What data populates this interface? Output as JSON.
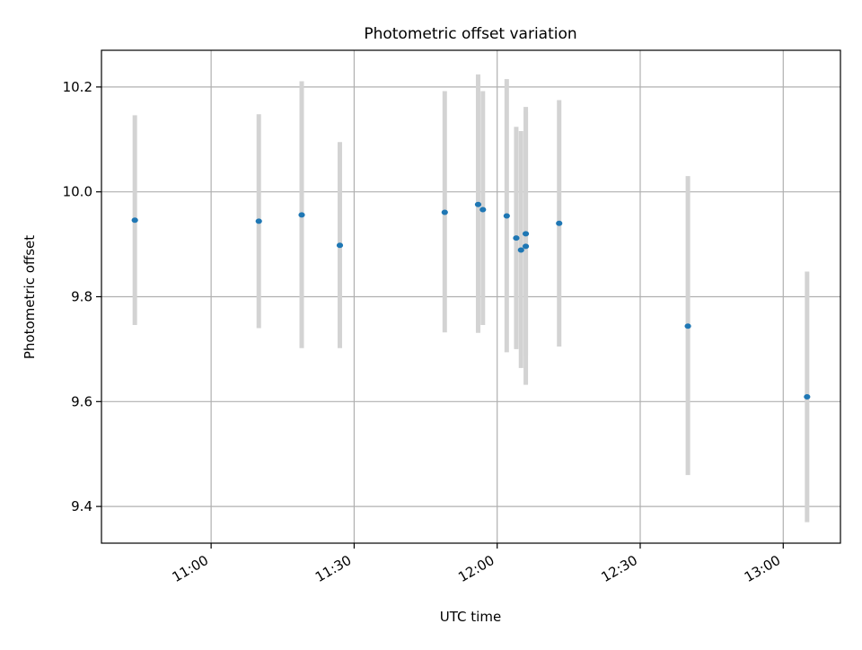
{
  "chart_data": {
    "type": "scatter",
    "title": "Photometric offset variation",
    "xlabel": "UTC time",
    "ylabel": "Photometric offset",
    "x_axis_type": "time",
    "xlim": [
      "10:37",
      "13:12"
    ],
    "ylim": [
      9.33,
      10.27
    ],
    "xticks": [
      "11:00",
      "11:30",
      "12:00",
      "12:30",
      "13:00"
    ],
    "yticks": [
      9.4,
      9.6,
      9.8,
      10.0,
      10.2
    ],
    "ytick_labels": [
      "9.4",
      "9.6",
      "9.8",
      "10.0",
      "10.2"
    ],
    "grid": true,
    "legend": "none",
    "colors": {
      "point": "#1f77b4",
      "errorbar": "#d3d3d3",
      "grid": "#b0b0b0"
    },
    "points": [
      {
        "x": "10:44",
        "y": 9.946,
        "ylow": 9.746,
        "yhigh": 10.146
      },
      {
        "x": "11:10",
        "y": 9.944,
        "ylow": 9.74,
        "yhigh": 10.148
      },
      {
        "x": "11:19",
        "y": 9.956,
        "ylow": 9.702,
        "yhigh": 10.211
      },
      {
        "x": "11:27",
        "y": 9.898,
        "ylow": 9.702,
        "yhigh": 10.095
      },
      {
        "x": "11:49",
        "y": 9.961,
        "ylow": 9.732,
        "yhigh": 10.192
      },
      {
        "x": "11:56",
        "y": 9.976,
        "ylow": 9.731,
        "yhigh": 10.224
      },
      {
        "x": "11:57",
        "y": 9.966,
        "ylow": 9.746,
        "yhigh": 10.192
      },
      {
        "x": "12:02",
        "y": 9.954,
        "ylow": 9.694,
        "yhigh": 10.215
      },
      {
        "x": "12:04",
        "y": 9.912,
        "ylow": 9.7,
        "yhigh": 10.124
      },
      {
        "x": "12:05",
        "y": 9.889,
        "ylow": 9.664,
        "yhigh": 10.116
      },
      {
        "x": "12:06",
        "y": 9.92,
        "ylow": 9.688,
        "yhigh": 10.152
      },
      {
        "x": "12:06",
        "y": 9.896,
        "ylow": 9.632,
        "yhigh": 10.162
      },
      {
        "x": "12:13",
        "y": 9.94,
        "ylow": 9.705,
        "yhigh": 10.175
      },
      {
        "x": "12:40",
        "y": 9.744,
        "ylow": 9.46,
        "yhigh": 10.03
      },
      {
        "x": "13:05",
        "y": 9.609,
        "ylow": 9.37,
        "yhigh": 9.848
      }
    ]
  }
}
